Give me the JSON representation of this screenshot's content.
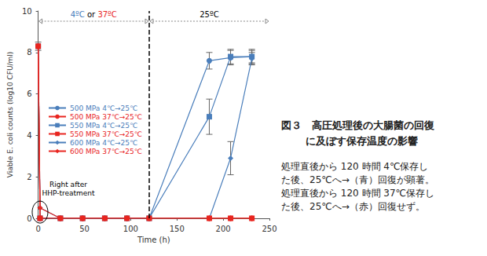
{
  "chart_data": {
    "type": "line",
    "xlabel": "Time (h)",
    "ylabel": "Viable E. coli counts (log10 CFU/ml)",
    "x": [
      0,
      2,
      24,
      48,
      72,
      96,
      120,
      185,
      208,
      231
    ],
    "xlim": [
      0,
      250
    ],
    "xticks": [
      0,
      50,
      100,
      150,
      200,
      250
    ],
    "ylim": [
      0,
      10
    ],
    "yticks": [
      0,
      2,
      4,
      6,
      8,
      10
    ],
    "grid": false,
    "legend": "left",
    "series": [
      {
        "name": "500 MPa 4℃→25℃",
        "color": "#4a7ebb",
        "marker": "circle",
        "values": [
          8.3,
          0,
          0,
          0,
          0,
          0,
          0,
          7.6,
          7.75,
          7.8
        ],
        "errors": [
          0.2,
          null,
          null,
          null,
          null,
          null,
          null,
          0.4,
          0.35,
          0.3
        ]
      },
      {
        "name": "500 MPa 37℃→25℃",
        "color": "#e8251f",
        "marker": "circle",
        "values": [
          8.3,
          0,
          0,
          0,
          0,
          0,
          0,
          0,
          0,
          0
        ]
      },
      {
        "name": "550 MPa 4℃→25℃",
        "color": "#4a7ebb",
        "marker": "square",
        "values": [
          8.3,
          0,
          0,
          0,
          0,
          0,
          0,
          4.9,
          7.8,
          7.8
        ],
        "errors": [
          null,
          null,
          null,
          null,
          null,
          null,
          null,
          0.85,
          0.35,
          0.35
        ]
      },
      {
        "name": "550 MPa 37℃→25℃",
        "color": "#e8251f",
        "marker": "square",
        "values": [
          8.3,
          0,
          0,
          0,
          0,
          0,
          0,
          0,
          0,
          0
        ]
      },
      {
        "name": "600 MPa 4℃→25℃",
        "color": "#4a7ebb",
        "marker": "diamond",
        "values": [
          8.3,
          0.5,
          0,
          0,
          0,
          0,
          0,
          0,
          2.9,
          7.7
        ],
        "errors": [
          null,
          null,
          null,
          null,
          null,
          null,
          null,
          null,
          0.8,
          0.3
        ]
      },
      {
        "name": "600 MPa 37℃→25℃",
        "color": "#e8251f",
        "marker": "diamond",
        "values": [
          8.3,
          0.5,
          0,
          0,
          0,
          0,
          0,
          0,
          0,
          0
        ]
      }
    ],
    "periods": [
      {
        "from": 0,
        "to": 120,
        "label": [
          {
            "text": "4ºC",
            "color": "#4a7ebb"
          },
          {
            "text": "or",
            "color": "#000000"
          },
          {
            "text": "37ºC",
            "color": "#e8251f"
          }
        ]
      },
      {
        "from": 120,
        "to": 250,
        "label": [
          {
            "text": "25ºC",
            "color": "#000000"
          }
        ]
      }
    ],
    "annotations": [
      {
        "text": [
          "Right after",
          "HHP-treatment"
        ],
        "x": 2,
        "y": 0.3,
        "marker": "ellipse"
      }
    ]
  },
  "caption": {
    "title": [
      "図３　高圧処理後の大腸菌の回復",
      "　　 に及ぼす保存温度の影響"
    ],
    "body": [
      "処理直後から 120 時間 4℃保存し",
      "た後、25℃へ→（青）回復が顕著。",
      "処理直後から 120 時間 37℃保存し",
      "た後、25℃へ→（赤）回復せず。"
    ]
  }
}
